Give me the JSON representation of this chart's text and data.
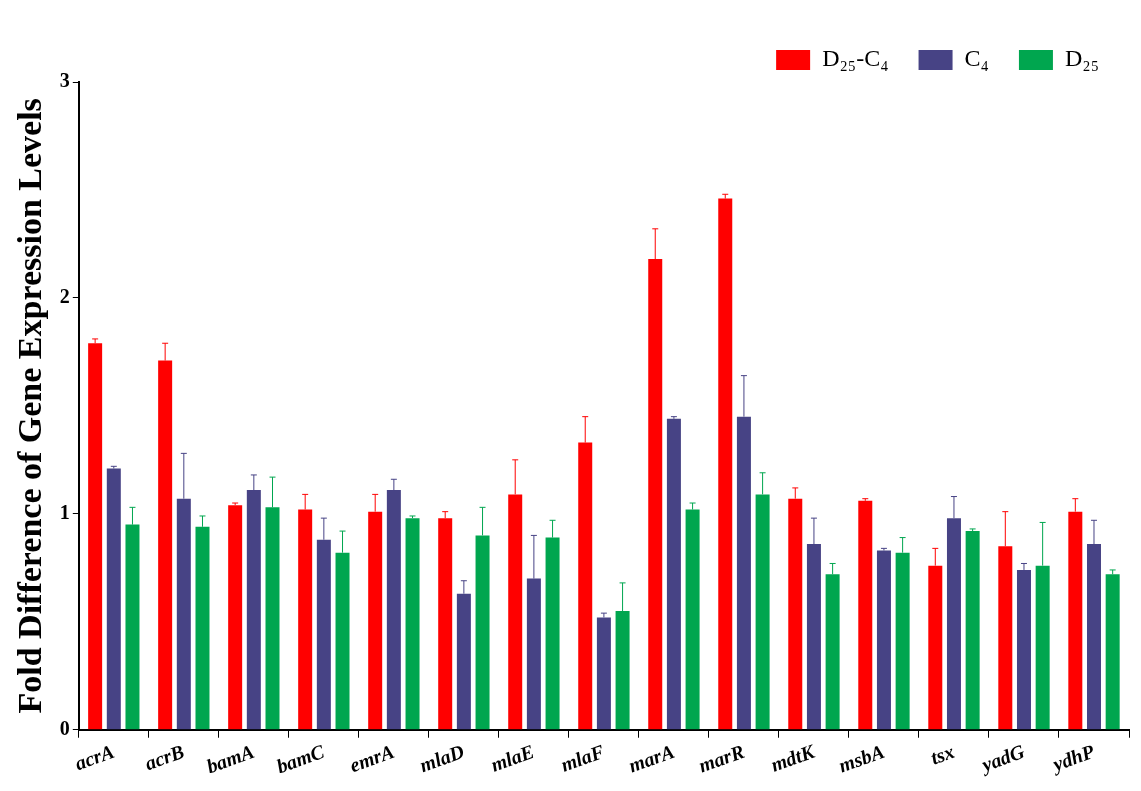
{
  "chart_data": {
    "type": "bar",
    "ylabel": "Fold Difference of Gene Expression Levels",
    "categories": [
      "acrA",
      "acrB",
      "bamA",
      "bamC",
      "emrA",
      "mlaD",
      "mlaE",
      "mlaF",
      "marA",
      "marR",
      "mdtK",
      "msbA",
      "tsx",
      "yadG",
      "ydhP"
    ],
    "series": [
      {
        "name": "D₂₅-C₄",
        "color": "#ff0000",
        "values": [
          1.79,
          1.71,
          1.04,
          1.02,
          1.01,
          0.98,
          1.09,
          1.33,
          2.18,
          2.46,
          1.07,
          1.06,
          0.76,
          0.85,
          1.01
        ],
        "errors": [
          [
            1.79,
            1.81
          ],
          [
            1.71,
            1.79
          ],
          [
            1.04,
            1.05
          ],
          [
            1.02,
            1.09
          ],
          [
            1.01,
            1.09
          ],
          [
            0.98,
            1.01
          ],
          [
            1.09,
            1.25
          ],
          [
            1.33,
            1.45
          ],
          [
            2.18,
            2.32
          ],
          [
            2.46,
            2.48
          ],
          [
            1.07,
            1.12
          ],
          [
            1.06,
            1.07
          ],
          [
            0.76,
            0.84
          ],
          [
            0.85,
            1.01
          ],
          [
            1.01,
            1.07
          ]
        ]
      },
      {
        "name": "C₄",
        "color": "#474385",
        "values": [
          1.21,
          1.07,
          1.11,
          0.88,
          1.11,
          0.63,
          0.7,
          0.52,
          1.44,
          1.45,
          0.86,
          0.83,
          0.98,
          0.74,
          0.86
        ],
        "errors": [
          [
            1.21,
            1.22
          ],
          [
            1.07,
            1.28
          ],
          [
            1.11,
            1.18
          ],
          [
            0.88,
            0.98
          ],
          [
            1.11,
            1.16
          ],
          [
            0.63,
            0.69
          ],
          [
            0.7,
            0.9
          ],
          [
            0.52,
            0.54
          ],
          [
            1.44,
            1.45
          ],
          [
            1.45,
            1.64
          ],
          [
            0.86,
            0.98
          ],
          [
            0.83,
            0.84
          ],
          [
            0.98,
            1.08
          ],
          [
            0.74,
            0.77
          ],
          [
            0.86,
            0.97
          ]
        ]
      },
      {
        "name": "D₂₅",
        "color": "#00a64f",
        "values": [
          0.95,
          0.94,
          1.03,
          0.82,
          0.98,
          0.9,
          0.89,
          0.55,
          1.02,
          1.09,
          0.72,
          0.82,
          0.92,
          0.76,
          0.72
        ],
        "errors": [
          [
            0.95,
            1.03
          ],
          [
            0.94,
            0.99
          ],
          [
            1.03,
            1.17
          ],
          [
            0.82,
            0.92
          ],
          [
            0.98,
            0.99
          ],
          [
            0.9,
            1.03
          ],
          [
            0.89,
            0.97
          ],
          [
            0.55,
            0.68
          ],
          [
            1.02,
            1.05
          ],
          [
            1.09,
            1.19
          ],
          [
            0.72,
            0.77
          ],
          [
            0.82,
            0.89
          ],
          [
            0.92,
            0.93
          ],
          [
            0.76,
            0.96
          ],
          [
            0.72,
            0.74
          ]
        ]
      }
    ],
    "ylim": [
      0,
      3
    ],
    "yticks": [
      0,
      1,
      2,
      3
    ],
    "grid": false,
    "legend": "top right"
  }
}
